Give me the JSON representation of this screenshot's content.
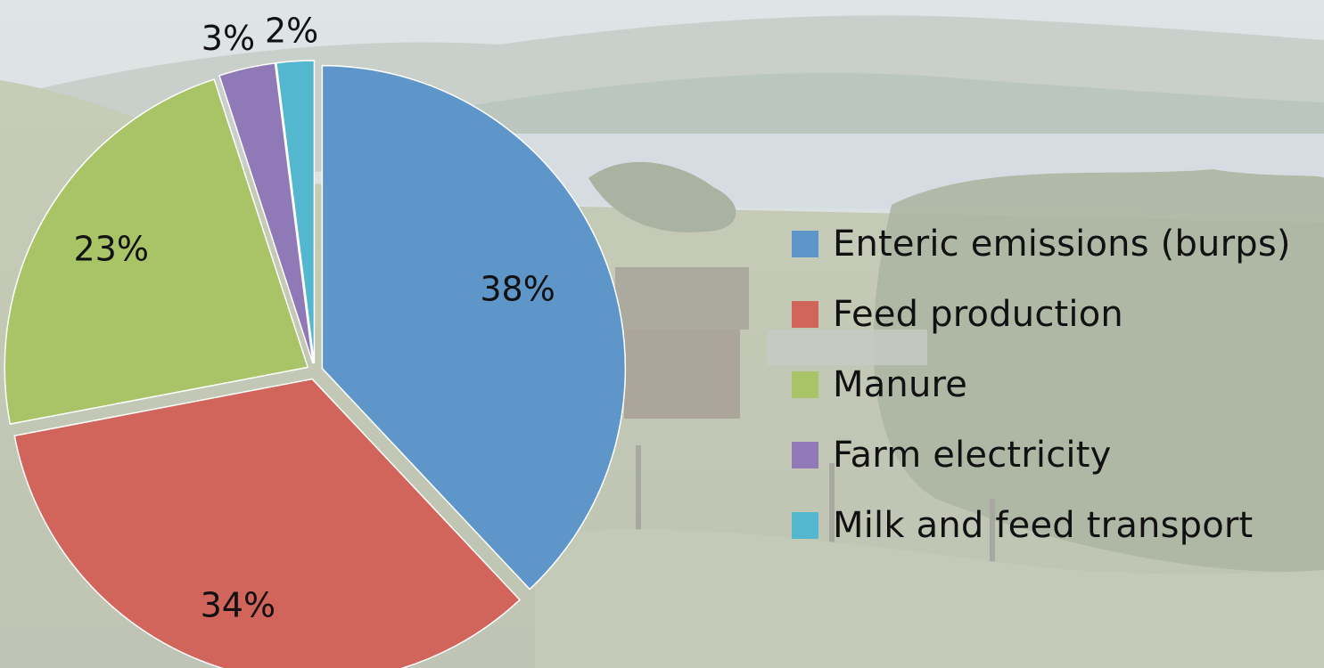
{
  "chart_data": {
    "type": "pie",
    "categories": [
      "Enteric emissions (burps)",
      "Feed production",
      "Manure",
      "Farm electricity",
      "Milk and feed transport"
    ],
    "values": [
      38,
      34,
      23,
      3,
      2
    ],
    "data_labels": [
      "38%",
      "34%",
      "23%",
      "3%",
      "2%"
    ],
    "colors": [
      "#5f96c9",
      "#d1655c",
      "#a9c467",
      "#8f79b6",
      "#53b8cf"
    ],
    "legend_position": "right",
    "exploded": true
  }
}
